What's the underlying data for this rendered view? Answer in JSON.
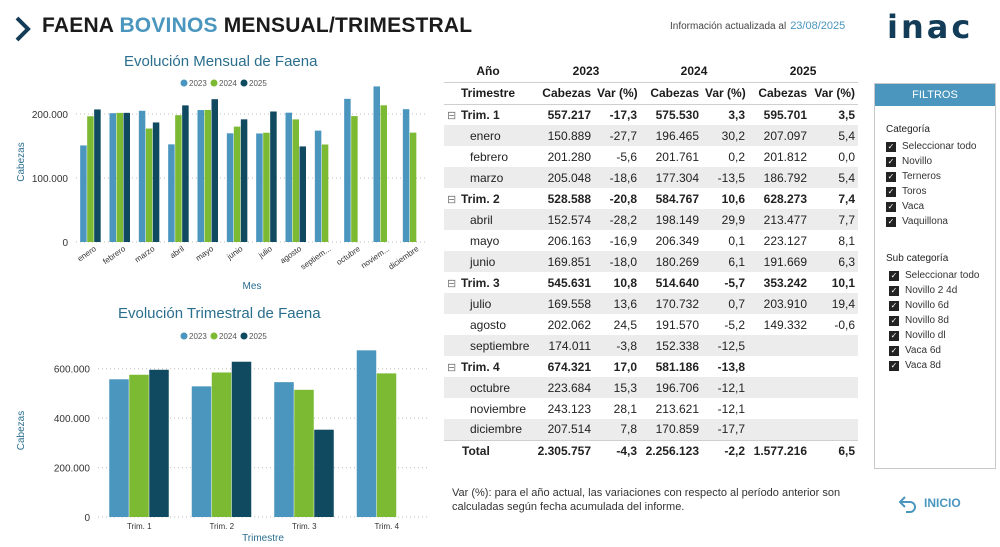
{
  "header": {
    "title_part1": "FAENA ",
    "title_accent": "BOVINOS",
    "title_part2": " MENSUAL/TRIMESTRAL",
    "updated_label": "Información actualizada al",
    "updated_date": "23/08/2025",
    "logo_text": "inac"
  },
  "colors": {
    "y2023": "#4a96be",
    "y2024": "#7dba34",
    "y2025": "#0f4a60",
    "accent": "#4a96be"
  },
  "chart_data": [
    {
      "type": "bar",
      "title": "Evolución Mensual de Faena",
      "xlabel": "Mes",
      "ylabel": "Cabezas",
      "ylim": [
        0,
        250000
      ],
      "yticks": [
        "0",
        "100.000",
        "200.000"
      ],
      "legend": "top-center",
      "categories": [
        "enero",
        "febrero",
        "marzo",
        "abril",
        "mayo",
        "junio",
        "julio",
        "agosto",
        "septiem...",
        "octubre",
        "noviem...",
        "diciembre"
      ],
      "series": [
        {
          "name": "2023",
          "values": [
            150889,
            201280,
            205048,
            152574,
            206163,
            169851,
            169558,
            202062,
            174011,
            223684,
            243123,
            207514
          ]
        },
        {
          "name": "2024",
          "values": [
            196465,
            201761,
            177304,
            198149,
            206349,
            180269,
            170732,
            191570,
            152338,
            196706,
            213621,
            170859
          ]
        },
        {
          "name": "2025",
          "values": [
            207097,
            201812,
            186792,
            213477,
            223127,
            191669,
            203910,
            149332,
            null,
            null,
            null,
            null
          ]
        }
      ]
    },
    {
      "type": "bar",
      "title": "Evolución Trimestral de Faena",
      "xlabel": "Trimestre",
      "ylabel": "Cabezas",
      "ylim": [
        0,
        700000
      ],
      "yticks": [
        "0",
        "200.000",
        "400.000",
        "600.000"
      ],
      "legend": "top-center",
      "categories": [
        "Trim. 1",
        "Trim. 2",
        "Trim. 3",
        "Trim. 4"
      ],
      "series": [
        {
          "name": "2023",
          "values": [
            557217,
            528588,
            545631,
            674321
          ]
        },
        {
          "name": "2024",
          "values": [
            575530,
            584767,
            514640,
            581186
          ]
        },
        {
          "name": "2025",
          "values": [
            595701,
            628273,
            353242,
            null
          ]
        }
      ]
    }
  ],
  "table": {
    "years": [
      "Año",
      "2023",
      "2024",
      "2025"
    ],
    "columns": [
      "Trimestre",
      "Cabezas",
      "Var (%)",
      "Cabezas",
      "Var (%)",
      "Cabezas",
      "Var (%)"
    ],
    "collapse_glyph": "⊟",
    "rows": [
      {
        "kind": "q",
        "cells": [
          "Trim. 1",
          "557.217",
          "-17,3",
          "575.530",
          "3,3",
          "595.701",
          "3,5"
        ]
      },
      {
        "kind": "m",
        "cells": [
          "enero",
          "150.889",
          "-27,7",
          "196.465",
          "30,2",
          "207.097",
          "5,4"
        ]
      },
      {
        "kind": "m",
        "cells": [
          "febrero",
          "201.280",
          "-5,6",
          "201.761",
          "0,2",
          "201.812",
          "0,0"
        ]
      },
      {
        "kind": "m",
        "cells": [
          "marzo",
          "205.048",
          "-18,6",
          "177.304",
          "-13,5",
          "186.792",
          "5,4"
        ]
      },
      {
        "kind": "q",
        "cells": [
          "Trim. 2",
          "528.588",
          "-20,8",
          "584.767",
          "10,6",
          "628.273",
          "7,4"
        ]
      },
      {
        "kind": "m",
        "cells": [
          "abril",
          "152.574",
          "-28,2",
          "198.149",
          "29,9",
          "213.477",
          "7,7"
        ]
      },
      {
        "kind": "m",
        "cells": [
          "mayo",
          "206.163",
          "-16,9",
          "206.349",
          "0,1",
          "223.127",
          "8,1"
        ]
      },
      {
        "kind": "m",
        "cells": [
          "junio",
          "169.851",
          "-18,0",
          "180.269",
          "6,1",
          "191.669",
          "6,3"
        ]
      },
      {
        "kind": "q",
        "cells": [
          "Trim. 3",
          "545.631",
          "10,8",
          "514.640",
          "-5,7",
          "353.242",
          "10,1"
        ]
      },
      {
        "kind": "m",
        "cells": [
          "julio",
          "169.558",
          "13,6",
          "170.732",
          "0,7",
          "203.910",
          "19,4"
        ]
      },
      {
        "kind": "m",
        "cells": [
          "agosto",
          "202.062",
          "24,5",
          "191.570",
          "-5,2",
          "149.332",
          "-0,6"
        ]
      },
      {
        "kind": "m",
        "cells": [
          "septiembre",
          "174.011",
          "-3,8",
          "152.338",
          "-12,5",
          "",
          ""
        ]
      },
      {
        "kind": "q",
        "cells": [
          "Trim. 4",
          "674.321",
          "17,0",
          "581.186",
          "-13,8",
          "",
          ""
        ]
      },
      {
        "kind": "m",
        "cells": [
          "octubre",
          "223.684",
          "15,3",
          "196.706",
          "-12,1",
          "",
          ""
        ]
      },
      {
        "kind": "m",
        "cells": [
          "noviembre",
          "243.123",
          "28,1",
          "213.621",
          "-12,1",
          "",
          ""
        ]
      },
      {
        "kind": "m",
        "cells": [
          "diciembre",
          "207.514",
          "7,8",
          "170.859",
          "-17,7",
          "",
          ""
        ]
      }
    ],
    "total": [
      "Total",
      "2.305.757",
      "-4,3",
      "2.256.123",
      "-2,2",
      "1.577.216",
      "6,5"
    ]
  },
  "note": "Var (%): para el año actual, las variaciones con respecto al período anterior son calculadas según fecha acumulada del informe.",
  "filters": {
    "title": "FILTROS",
    "categoria_title": "Categoría",
    "categoria_items": [
      "Seleccionar todo",
      "Novillo",
      "Terneros",
      "Toros",
      "Vaca",
      "Vaquillona"
    ],
    "subcategoria_title": "Sub categoría",
    "subcategoria_items": [
      "Seleccionar todo",
      "Novillo 2 4d",
      "Novillo 6d",
      "Novillo 8d",
      "Novillo dl",
      "Vaca 6d",
      "Vaca 8d"
    ]
  },
  "nav": {
    "inicio_label": "INICIO"
  }
}
